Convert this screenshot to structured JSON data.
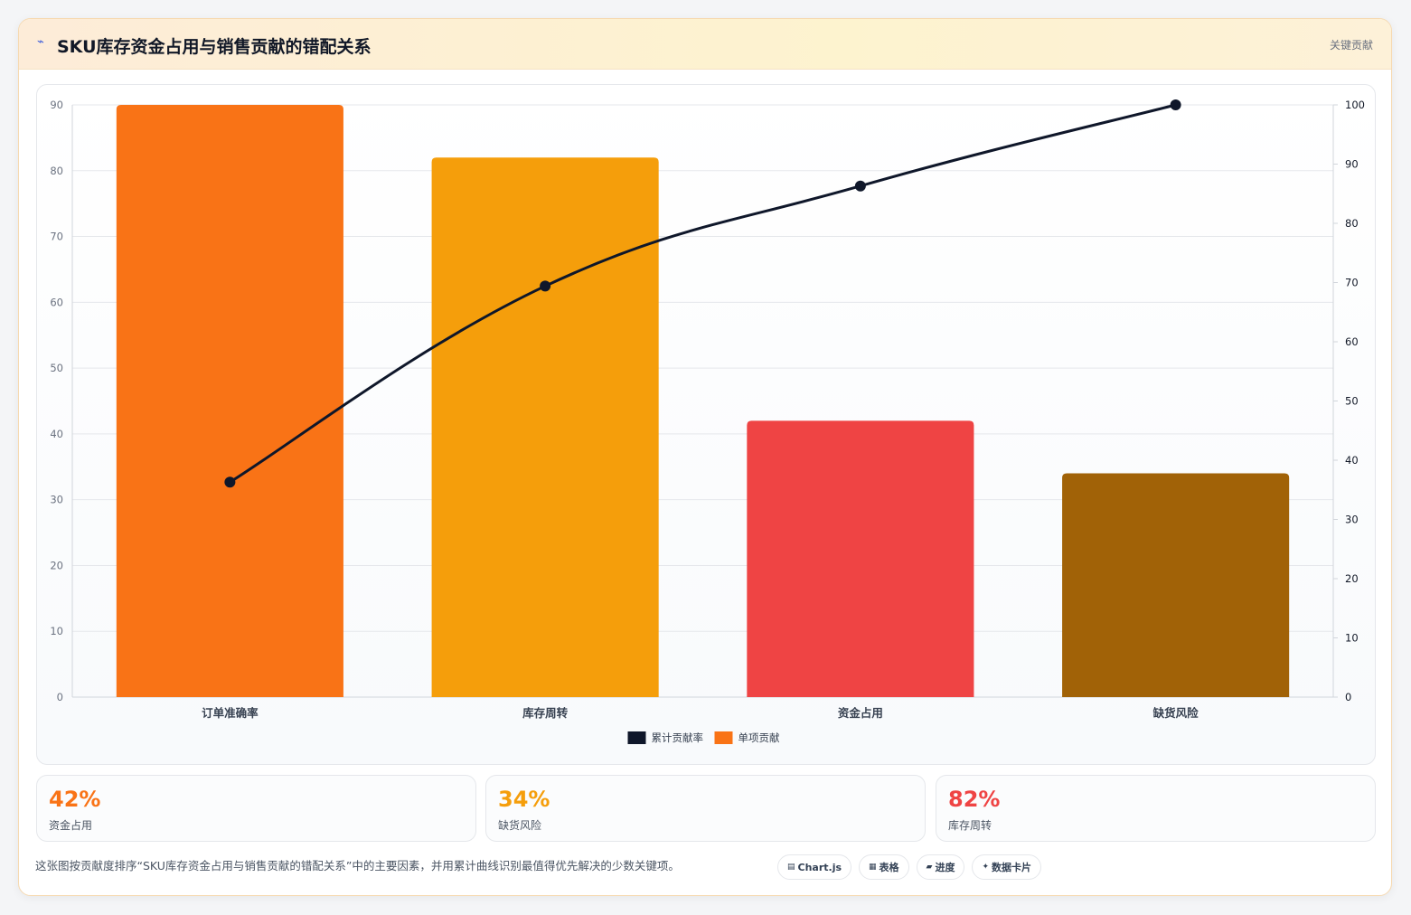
{
  "header": {
    "icon": "⌁",
    "title": "SKU库存资金占用与销售贡献的错配关系",
    "tag": "关键贡献"
  },
  "colors": {
    "bars": [
      "#f97316",
      "#f59e0b",
      "#ef4444",
      "#a16207"
    ],
    "line": "#0f172a",
    "grid": "#e5e7eb",
    "axis_text": "#6b7280",
    "category_text": "#374151"
  },
  "chart_data": {
    "type": "bar",
    "categories": [
      "订单准确率",
      "库存周转",
      "资金占用",
      "缺货风险"
    ],
    "series": [
      {
        "name": "单项贡献",
        "type": "bar",
        "axis": "left",
        "values": [
          90,
          82,
          42,
          34
        ]
      },
      {
        "name": "累计贡献率",
        "type": "line",
        "axis": "right",
        "values": [
          36.3,
          69.4,
          86.3,
          100
        ]
      }
    ],
    "ylim": [
      0,
      90
    ],
    "y_ticks": [
      0,
      10,
      20,
      30,
      40,
      50,
      60,
      70,
      80,
      90
    ],
    "y2lim": [
      0,
      100
    ],
    "y2_ticks": [
      0,
      10,
      20,
      30,
      40,
      50,
      60,
      70,
      80,
      90,
      100
    ],
    "grid": true,
    "legend_position": "bottom",
    "legend": [
      {
        "label": "累计贡献率",
        "color": "#0f172a"
      },
      {
        "label": "单项贡献",
        "color": "#f97316"
      }
    ]
  },
  "stats": [
    {
      "value": "42%",
      "label": "资金占用",
      "color": "#f97316"
    },
    {
      "value": "34%",
      "label": "缺货风险",
      "color": "#f59e0b"
    },
    {
      "value": "82%",
      "label": "库存周转",
      "color": "#ef4444"
    }
  ],
  "description": "这张图按贡献度排序“SKU库存资金占用与销售贡献的错配关系”中的主要因素，并用累计曲线识别最值得优先解决的少数关键项。",
  "tags": [
    {
      "icon": "chart-icon",
      "symbol": "▤",
      "label": "Chart.js"
    },
    {
      "icon": "table-icon",
      "symbol": "▦",
      "label": "表格"
    },
    {
      "icon": "progress-icon",
      "symbol": "▰",
      "label": "进度"
    },
    {
      "icon": "sparkle-icon",
      "symbol": "✦",
      "label": "数据卡片"
    }
  ]
}
